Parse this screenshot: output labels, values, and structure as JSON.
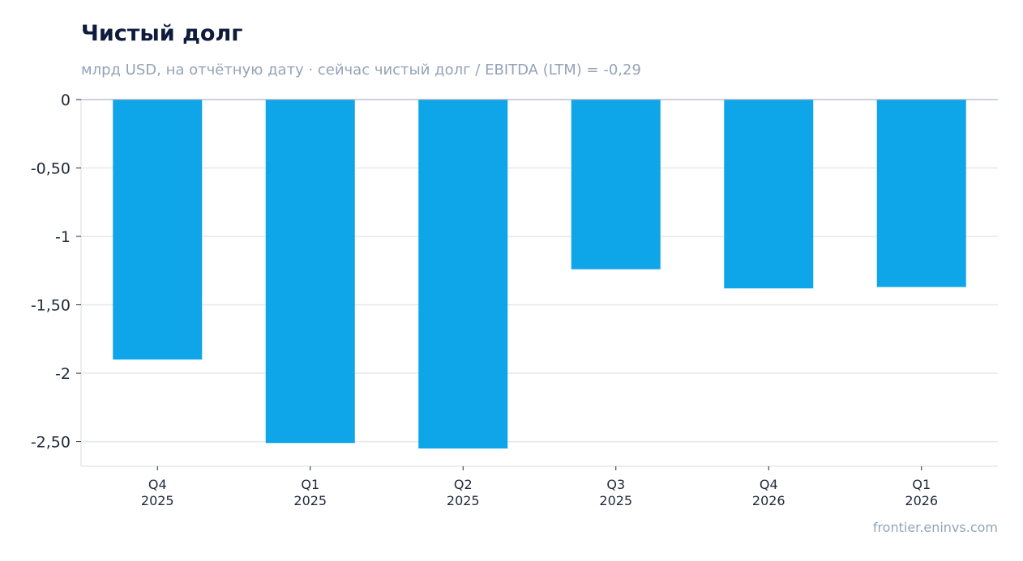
{
  "header": {
    "title": "Чистый долг",
    "subtitle": "млрд USD, на отчётную дату · сейчас чистый долг / EBITDA (LTM) = -0,29"
  },
  "footer": {
    "source": "frontier.eninvs.com"
  },
  "colors": {
    "bar": "#0ea5e9",
    "grid": "#e5e7eb",
    "zero_line": "#94a3b8"
  },
  "chart_data": {
    "type": "bar",
    "categories": [
      [
        "Q4",
        "2025"
      ],
      [
        "Q1",
        "2025"
      ],
      [
        "Q2",
        "2025"
      ],
      [
        "Q3",
        "2025"
      ],
      [
        "Q4",
        "2026"
      ],
      [
        "Q1",
        "2026"
      ]
    ],
    "values": [
      -1.9,
      -2.51,
      -2.55,
      -1.24,
      -1.38,
      -1.37
    ],
    "yticks": [
      0,
      -0.5,
      -1,
      -1.5,
      -2,
      -2.5
    ],
    "ytick_labels": [
      "0",
      "-0,50",
      "-1",
      "-1,50",
      "-2",
      "-2,50"
    ],
    "ylim": [
      -2.68,
      0
    ],
    "grid": true,
    "legend": "none"
  }
}
